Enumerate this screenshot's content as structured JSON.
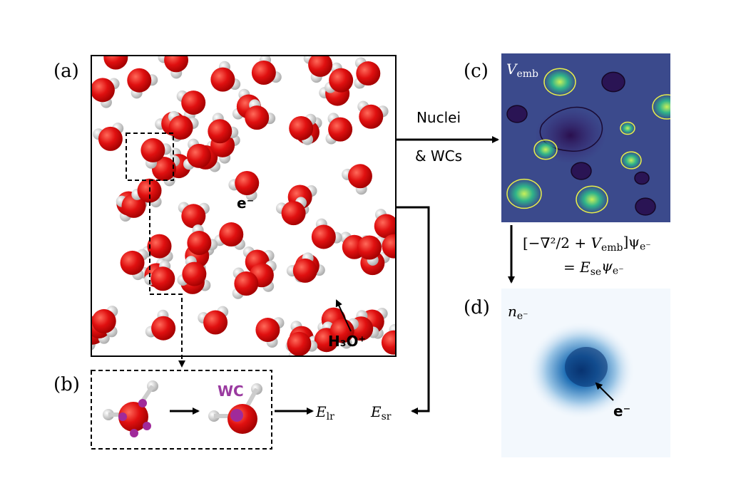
{
  "panel_labels": [
    "(a)",
    "(b)",
    "(c)",
    "(d)"
  ],
  "panel_a": {
    "electron": "e⁻",
    "hydronium": "H₃O⁺"
  },
  "panel_b": {
    "wannier_center": "WC",
    "long_range_energy": [
      {
        "t": "E"
      },
      {
        "t": "lr",
        "s": "sub"
      }
    ]
  },
  "flow": {
    "nuclei_line1": "Nuclei",
    "nuclei_line2": "& WCs",
    "short_range_energy": [
      {
        "t": "E"
      },
      {
        "t": "sr",
        "s": "sub"
      }
    ]
  },
  "panel_c": {
    "potential": [
      {
        "t": "V"
      },
      {
        "t": "emb",
        "s": "sub"
      }
    ]
  },
  "equation": {
    "line1": [
      {
        "t": "[−∇²/2 + "
      },
      {
        "t": "V"
      },
      {
        "t": "emb",
        "s": "sub"
      },
      {
        "t": "]ψ"
      },
      {
        "t": "e⁻",
        "s": "sub"
      }
    ],
    "line2": [
      {
        "t": "= "
      },
      {
        "t": "E"
      },
      {
        "t": "se",
        "s": "sub"
      },
      {
        "t": "ψ"
      },
      {
        "t": "e⁻",
        "s": "sub"
      }
    ]
  },
  "panel_d": {
    "density": [
      {
        "t": "n"
      },
      {
        "t": "e⁻",
        "s": "sub"
      }
    ],
    "electron": "e⁻"
  }
}
